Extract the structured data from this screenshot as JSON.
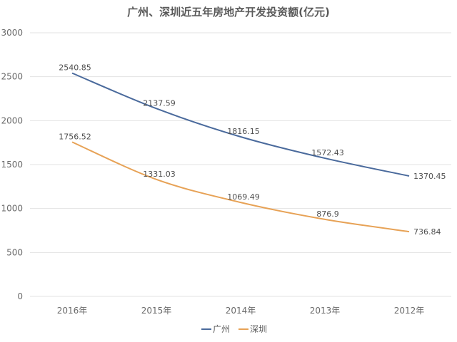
{
  "chart_data": {
    "type": "line",
    "title": "广州、深圳近五年房地产开发投资额(亿元)",
    "xlabel": "",
    "ylabel": "",
    "categories": [
      "2016年",
      "2015年",
      "2014年",
      "2013年",
      "2012年"
    ],
    "ylim": [
      0,
      3000
    ],
    "yticks": [
      0,
      500,
      1000,
      1500,
      2000,
      2500,
      3000
    ],
    "grid": true,
    "legend": "bottom",
    "series": [
      {
        "name": "广州",
        "color": "#4a6a9c",
        "values": [
          2540.85,
          2137.59,
          1816.15,
          1572.43,
          1370.45
        ],
        "labels": [
          "2540.85",
          "2137.59",
          "1816.15",
          "1572.43",
          "1370.45"
        ]
      },
      {
        "name": "深圳",
        "color": "#e7a256",
        "values": [
          1756.52,
          1331.03,
          1069.49,
          876.9,
          736.84
        ],
        "labels": [
          "1756.52",
          "1331.03",
          "1069.49",
          "876.9",
          "736.84"
        ]
      }
    ]
  }
}
